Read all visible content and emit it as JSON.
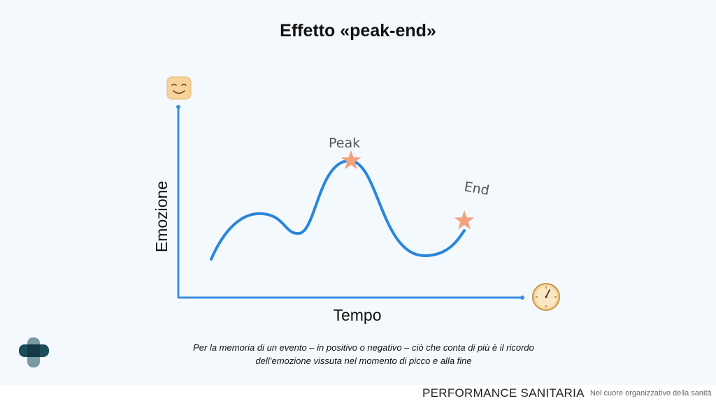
{
  "slide": {
    "title": "Effetto «peak-end»",
    "caption_line1": "Per la memoria di un evento – in positivo o negativo – ciò che conta di più è il ricordo",
    "caption_line2": "dell’emozione vissuta  nel momento di picco e alla fine"
  },
  "diagram": {
    "y_axis_label": "Emozione",
    "x_axis_label": "Tempo",
    "peak_label": "Peak",
    "end_label": "End",
    "y_axis_icon": "smiling-face-icon",
    "x_axis_icon": "clock-icon",
    "curve_color": "#2a86dc",
    "axis_color": "#3b8fe0",
    "star_color": "#f0a27e"
  },
  "footer": {
    "brand": "PERFORMANCE SANITARIA",
    "tagline": "Nel cuore organizzativo della sanità"
  },
  "logo": {
    "icon": "medical-cross-logo-icon"
  }
}
